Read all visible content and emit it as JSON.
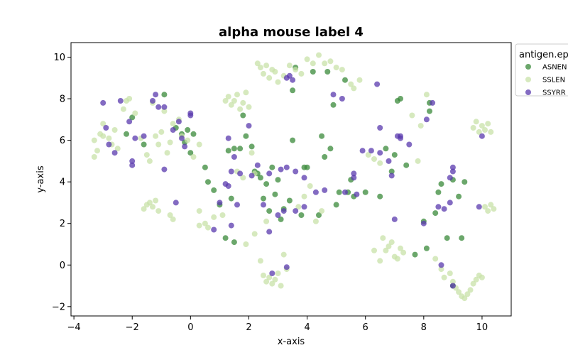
{
  "chart_data": {
    "type": "scatter",
    "title": "alpha mouse label 4",
    "xlabel": "x-axis",
    "ylabel": "y-axis",
    "xlim": [
      -4.1,
      11.0
    ],
    "ylim": [
      -2.45,
      10.7
    ],
    "xticks": [
      -4,
      -2,
      0,
      2,
      4,
      6,
      8,
      10
    ],
    "yticks": [
      -2,
      0,
      2,
      4,
      6,
      8,
      10
    ],
    "grid": false,
    "legend": {
      "title": "antigen.ep",
      "placement": "outside-right"
    },
    "series": [
      {
        "name": "ASNEN",
        "color": "#3a8a3a",
        "points": [
          [
            -2.2,
            6.3
          ],
          [
            -2.0,
            7.1
          ],
          [
            -1.6,
            5.8
          ],
          [
            -0.9,
            8.2
          ],
          [
            -0.5,
            6.6
          ],
          [
            -0.3,
            6.3
          ],
          [
            -0.1,
            6.5
          ],
          [
            0.0,
            5.4
          ],
          [
            0.1,
            6.3
          ],
          [
            -0.2,
            5.9
          ],
          [
            0.5,
            4.7
          ],
          [
            0.6,
            4.0
          ],
          [
            0.8,
            3.6
          ],
          [
            1.0,
            2.9
          ],
          [
            1.2,
            1.3
          ],
          [
            1.3,
            5.5
          ],
          [
            1.4,
            3.2
          ],
          [
            1.5,
            5.6
          ],
          [
            1.5,
            1.1
          ],
          [
            1.7,
            5.6
          ],
          [
            1.8,
            7.2
          ],
          [
            1.9,
            6.2
          ],
          [
            2.1,
            5.7
          ],
          [
            2.2,
            4.5
          ],
          [
            2.3,
            4.4
          ],
          [
            2.4,
            4.2
          ],
          [
            2.5,
            3.2
          ],
          [
            2.6,
            3.9
          ],
          [
            2.7,
            2.6
          ],
          [
            2.8,
            4.7
          ],
          [
            2.9,
            3.4
          ],
          [
            3.0,
            4.1
          ],
          [
            3.1,
            2.2
          ],
          [
            3.2,
            2.7
          ],
          [
            3.4,
            3.1
          ],
          [
            3.5,
            6.0
          ],
          [
            3.5,
            8.4
          ],
          [
            3.6,
            9.5
          ],
          [
            3.8,
            2.4
          ],
          [
            3.9,
            4.7
          ],
          [
            4.0,
            4.7
          ],
          [
            4.2,
            9.3
          ],
          [
            4.4,
            2.4
          ],
          [
            4.5,
            6.2
          ],
          [
            4.6,
            5.2
          ],
          [
            4.7,
            9.3
          ],
          [
            4.8,
            5.6
          ],
          [
            4.9,
            7.7
          ],
          [
            5.0,
            2.9
          ],
          [
            5.1,
            3.5
          ],
          [
            5.3,
            8.9
          ],
          [
            5.4,
            3.5
          ],
          [
            5.5,
            4.1
          ],
          [
            5.6,
            3.3
          ],
          [
            6.0,
            3.5
          ],
          [
            6.5,
            3.3
          ],
          [
            6.7,
            5.6
          ],
          [
            6.9,
            4.5
          ],
          [
            7.0,
            5.3
          ],
          [
            7.1,
            7.9
          ],
          [
            7.2,
            8.0
          ],
          [
            7.4,
            4.8
          ],
          [
            7.7,
            0.5
          ],
          [
            8.0,
            2.1
          ],
          [
            8.1,
            0.8
          ],
          [
            8.2,
            7.4
          ],
          [
            8.2,
            7.8
          ],
          [
            8.4,
            2.5
          ],
          [
            8.6,
            3.9
          ],
          [
            8.8,
            1.3
          ],
          [
            9.0,
            -1.0
          ],
          [
            9.2,
            3.3
          ],
          [
            9.3,
            1.3
          ],
          [
            9.4,
            4.0
          ],
          [
            9.0,
            4.1
          ],
          [
            8.5,
            3.5
          ]
        ]
      },
      {
        "name": "SSLEN",
        "color": "#c8e2a8",
        "points": [
          [
            -3.3,
            6.0
          ],
          [
            -3.2,
            5.5
          ],
          [
            -3.1,
            6.3
          ],
          [
            -3.0,
            6.8
          ],
          [
            -2.8,
            6.1
          ],
          [
            -2.7,
            5.8
          ],
          [
            -2.6,
            6.5
          ],
          [
            -2.5,
            5.6
          ],
          [
            -2.3,
            7.5
          ],
          [
            -2.2,
            7.9
          ],
          [
            -2.1,
            8.0
          ],
          [
            -1.9,
            7.3
          ],
          [
            -1.7,
            6.1
          ],
          [
            -1.5,
            5.3
          ],
          [
            -1.4,
            5.0
          ],
          [
            -1.3,
            7.8
          ],
          [
            -1.2,
            6.2
          ],
          [
            -1.1,
            5.8
          ],
          [
            -1.0,
            6.4
          ],
          [
            -0.9,
            7.4
          ],
          [
            -0.8,
            5.4
          ],
          [
            -0.7,
            5.9
          ],
          [
            -0.6,
            6.8
          ],
          [
            -0.4,
            7.0
          ],
          [
            -0.3,
            6.2
          ],
          [
            -0.1,
            6.0
          ],
          [
            0.1,
            5.2
          ],
          [
            0.3,
            5.8
          ],
          [
            -3.3,
            5.2
          ],
          [
            -3.0,
            6.2
          ],
          [
            -1.6,
            2.7
          ],
          [
            -1.5,
            2.9
          ],
          [
            -1.4,
            3.0
          ],
          [
            -1.3,
            2.8
          ],
          [
            -1.2,
            3.1
          ],
          [
            -1.1,
            2.6
          ],
          [
            -0.7,
            2.4
          ],
          [
            -0.6,
            2.2
          ],
          [
            0.3,
            2.6
          ],
          [
            0.3,
            1.9
          ],
          [
            0.5,
            2.0
          ],
          [
            0.6,
            1.8
          ],
          [
            0.8,
            2.3
          ],
          [
            1.1,
            2.4
          ],
          [
            1.2,
            7.9
          ],
          [
            1.3,
            8.1
          ],
          [
            1.4,
            7.7
          ],
          [
            1.5,
            7.9
          ],
          [
            1.6,
            8.2
          ],
          [
            1.7,
            7.5
          ],
          [
            1.8,
            7.8
          ],
          [
            1.9,
            8.3
          ],
          [
            2.0,
            7.6
          ],
          [
            2.1,
            5.4
          ],
          [
            2.2,
            4.4
          ],
          [
            2.3,
            9.7
          ],
          [
            2.4,
            9.5
          ],
          [
            2.5,
            9.2
          ],
          [
            2.6,
            9.6
          ],
          [
            2.7,
            9.0
          ],
          [
            2.8,
            9.4
          ],
          [
            2.9,
            9.3
          ],
          [
            3.0,
            8.8
          ],
          [
            3.2,
            9.1
          ],
          [
            3.4,
            9.6
          ],
          [
            3.6,
            9.4
          ],
          [
            3.8,
            9.2
          ],
          [
            4.0,
            9.9
          ],
          [
            4.2,
            9.7
          ],
          [
            4.4,
            10.1
          ],
          [
            4.6,
            9.7
          ],
          [
            4.8,
            9.8
          ],
          [
            5.0,
            9.5
          ],
          [
            5.2,
            9.4
          ],
          [
            5.5,
            8.7
          ],
          [
            5.6,
            8.5
          ],
          [
            5.8,
            8.9
          ],
          [
            6.1,
            5.3
          ],
          [
            6.3,
            5.1
          ],
          [
            6.5,
            4.9
          ],
          [
            6.6,
            1.3
          ],
          [
            6.7,
            0.7
          ],
          [
            6.8,
            0.9
          ],
          [
            6.9,
            1.1
          ],
          [
            7.0,
            0.4
          ],
          [
            7.1,
            0.3
          ],
          [
            7.2,
            0.8
          ],
          [
            7.3,
            0.6
          ],
          [
            6.5,
            0.2
          ],
          [
            6.3,
            0.7
          ],
          [
            7.8,
            5.0
          ],
          [
            7.6,
            7.2
          ],
          [
            7.9,
            6.7
          ],
          [
            8.1,
            8.2
          ],
          [
            8.4,
            0.3
          ],
          [
            8.6,
            -0.2
          ],
          [
            8.7,
            -0.6
          ],
          [
            8.9,
            -0.4
          ],
          [
            9.0,
            -0.8
          ],
          [
            9.1,
            -1.1
          ],
          [
            9.2,
            -1.3
          ],
          [
            9.3,
            -1.5
          ],
          [
            9.4,
            -1.6
          ],
          [
            9.5,
            -1.4
          ],
          [
            9.6,
            -1.2
          ],
          [
            9.7,
            -0.9
          ],
          [
            9.8,
            -0.7
          ],
          [
            9.9,
            -0.5
          ],
          [
            10.0,
            -0.6
          ],
          [
            9.7,
            6.6
          ],
          [
            9.8,
            6.9
          ],
          [
            9.9,
            6.4
          ],
          [
            10.0,
            6.7
          ],
          [
            10.1,
            6.5
          ],
          [
            10.2,
            6.8
          ],
          [
            10.3,
            6.4
          ],
          [
            10.1,
            2.8
          ],
          [
            10.2,
            2.6
          ],
          [
            10.3,
            2.9
          ],
          [
            10.4,
            2.7
          ],
          [
            2.5,
            -0.5
          ],
          [
            2.6,
            -0.8
          ],
          [
            2.7,
            -0.6
          ],
          [
            2.8,
            -0.9
          ],
          [
            2.9,
            -0.7
          ],
          [
            3.0,
            -0.4
          ],
          [
            3.1,
            -1.0
          ],
          [
            3.2,
            0.5
          ],
          [
            3.3,
            -0.2
          ],
          [
            2.4,
            0.2
          ],
          [
            4.3,
            2.1
          ],
          [
            4.5,
            2.6
          ],
          [
            1.9,
            1.0
          ],
          [
            2.2,
            1.5
          ],
          [
            2.6,
            2.1
          ],
          [
            3.7,
            2.8
          ],
          [
            3.9,
            3.3
          ],
          [
            4.1,
            3.8
          ],
          [
            1.6,
            4.5
          ],
          [
            1.8,
            4.2
          ]
        ]
      },
      {
        "name": "SSYRR",
        "color": "#5a3aad",
        "points": [
          [
            -3.0,
            7.8
          ],
          [
            -2.9,
            6.6
          ],
          [
            -2.8,
            5.8
          ],
          [
            -2.6,
            5.4
          ],
          [
            -2.4,
            7.9
          ],
          [
            -2.1,
            6.9
          ],
          [
            -2.0,
            5.0
          ],
          [
            -2.0,
            4.8
          ],
          [
            -1.9,
            6.1
          ],
          [
            -1.6,
            6.2
          ],
          [
            -1.3,
            7.9
          ],
          [
            -1.2,
            8.2
          ],
          [
            -1.1,
            7.6
          ],
          [
            -0.9,
            7.6
          ],
          [
            -0.9,
            4.6
          ],
          [
            -0.6,
            6.5
          ],
          [
            -0.5,
            3.0
          ],
          [
            -0.4,
            6.9
          ],
          [
            -0.3,
            6.1
          ],
          [
            -0.2,
            5.7
          ],
          [
            0.0,
            7.2
          ],
          [
            0.0,
            7.3
          ],
          [
            0.8,
            1.7
          ],
          [
            1.0,
            3.0
          ],
          [
            1.2,
            3.9
          ],
          [
            1.3,
            3.8
          ],
          [
            1.3,
            6.1
          ],
          [
            1.4,
            4.5
          ],
          [
            1.4,
            1.9
          ],
          [
            1.6,
            2.9
          ],
          [
            1.5,
            5.2
          ],
          [
            1.7,
            4.4
          ],
          [
            2.0,
            6.7
          ],
          [
            2.1,
            4.3
          ],
          [
            2.3,
            4.8
          ],
          [
            2.5,
            2.9
          ],
          [
            2.7,
            1.6
          ],
          [
            2.7,
            4.4
          ],
          [
            2.8,
            -0.4
          ],
          [
            3.0,
            2.4
          ],
          [
            3.1,
            4.6
          ],
          [
            3.2,
            2.6
          ],
          [
            3.3,
            4.7
          ],
          [
            3.3,
            9.0
          ],
          [
            3.4,
            9.1
          ],
          [
            3.5,
            8.9
          ],
          [
            3.6,
            2.6
          ],
          [
            3.6,
            4.5
          ],
          [
            3.9,
            4.2
          ],
          [
            3.9,
            2.8
          ],
          [
            3.3,
            -0.1
          ],
          [
            4.3,
            3.5
          ],
          [
            4.6,
            3.6
          ],
          [
            5.2,
            8.0
          ],
          [
            4.9,
            8.2
          ],
          [
            5.3,
            3.5
          ],
          [
            5.6,
            4.4
          ],
          [
            5.6,
            4.2
          ],
          [
            5.7,
            3.4
          ],
          [
            5.9,
            5.5
          ],
          [
            6.2,
            5.5
          ],
          [
            6.4,
            8.7
          ],
          [
            6.5,
            5.4
          ],
          [
            6.5,
            6.6
          ],
          [
            6.8,
            5.0
          ],
          [
            6.9,
            4.3
          ],
          [
            7.0,
            2.2
          ],
          [
            7.1,
            6.2
          ],
          [
            7.2,
            6.1
          ],
          [
            7.2,
            6.2
          ],
          [
            7.5,
            5.8
          ],
          [
            8.0,
            2.0
          ],
          [
            8.1,
            7.0
          ],
          [
            8.3,
            7.8
          ],
          [
            8.5,
            2.8
          ],
          [
            8.7,
            2.7
          ],
          [
            8.9,
            3.0
          ],
          [
            8.9,
            4.2
          ],
          [
            9.0,
            4.5
          ],
          [
            9.0,
            4.7
          ],
          [
            8.6,
            0.0
          ],
          [
            9.0,
            -1.0
          ],
          [
            10.0,
            6.2
          ],
          [
            9.9,
            2.8
          ]
        ]
      }
    ]
  }
}
